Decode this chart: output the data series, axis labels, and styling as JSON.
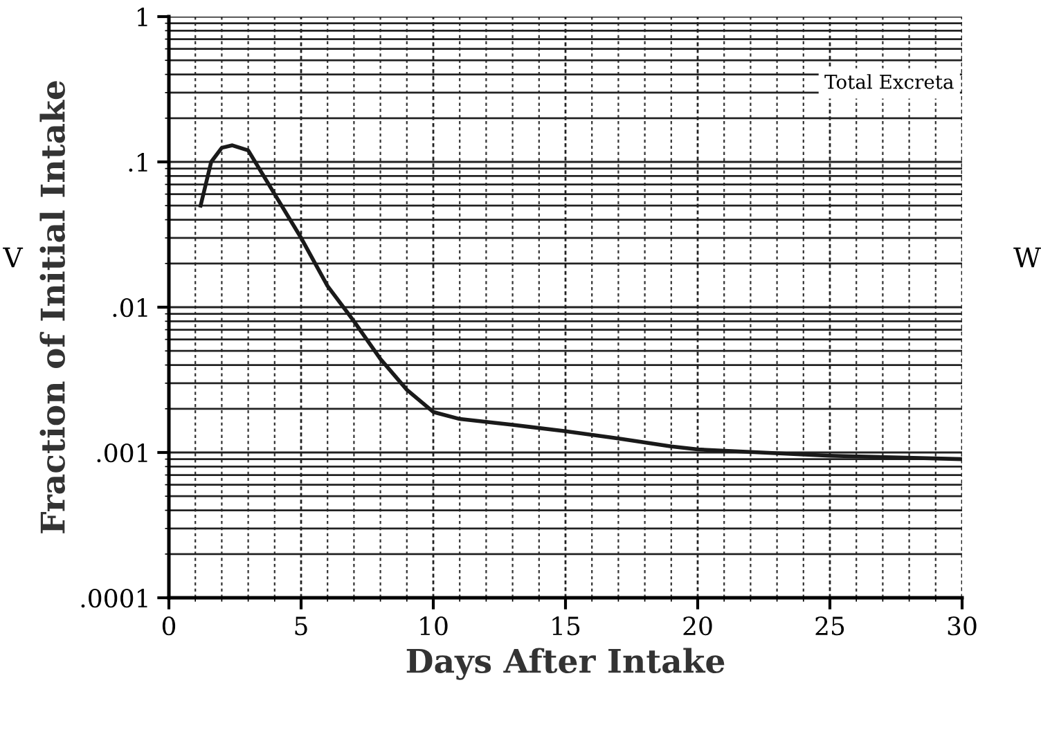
{
  "chart_data": {
    "type": "line",
    "xlabel": "Days After Intake",
    "ylabel": "Fraction of Initial Intake",
    "log": "y",
    "xlim": [
      0,
      30
    ],
    "xticks": [
      0,
      5,
      10,
      15,
      20,
      25,
      30
    ],
    "ylim": [
      0.0001,
      1
    ],
    "yticks": [
      {
        "value": 0.0001,
        "label": ".0001"
      },
      {
        "value": 0.001,
        "label": ".001"
      },
      {
        "value": 0.01,
        "label": ".01"
      },
      {
        "value": 0.1,
        "label": ".1"
      },
      {
        "value": 1,
        "label": "1"
      }
    ],
    "grid": true,
    "marker": "none",
    "line_style": "solid",
    "series": [
      {
        "name": "Total Excreta",
        "color": "#1a1a1a",
        "x": [
          1.2,
          1.6,
          2.0,
          2.4,
          3.0,
          4.0,
          5.0,
          6.0,
          7.0,
          8.0,
          9.0,
          10.0,
          11.0,
          13.0,
          15.0,
          17.0,
          19.0,
          20.0,
          25.0,
          30.0
        ],
        "values": [
          0.05,
          0.1,
          0.125,
          0.13,
          0.12,
          0.06,
          0.03,
          0.014,
          0.008,
          0.0044,
          0.0027,
          0.0019,
          0.0017,
          0.00155,
          0.0014,
          0.00125,
          0.0011,
          0.00105,
          0.00095,
          0.0009
        ]
      }
    ],
    "annotations": [
      "V",
      "W"
    ]
  }
}
